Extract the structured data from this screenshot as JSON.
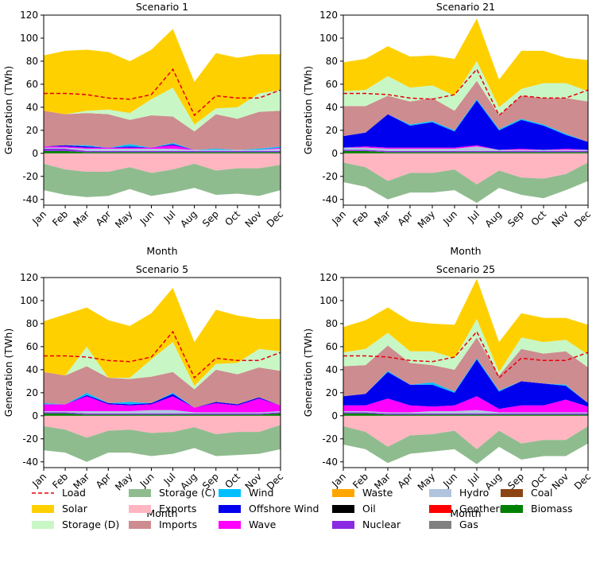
{
  "chart_data": [
    {
      "type": "area",
      "title": "Scenario 1",
      "xlabel": "Month",
      "ylabel": "Generation (TWh)",
      "ylim": [
        -45,
        120
      ],
      "yticks": [
        -40,
        -20,
        0,
        20,
        40,
        60,
        80,
        100,
        120
      ],
      "categories": [
        "Jan",
        "Feb",
        "Mar",
        "Apr",
        "May",
        "Jun",
        "Jul",
        "Aug",
        "Sep",
        "Oct",
        "Nov",
        "Dec"
      ],
      "series": [
        {
          "name": "Biomass",
          "values": [
            2,
            2,
            1,
            1,
            1,
            1,
            1,
            1,
            1,
            1,
            1,
            1
          ]
        },
        {
          "name": "Nuclear",
          "values": [
            2,
            2,
            1,
            1,
            1,
            1,
            1,
            1,
            1,
            1,
            1,
            1
          ]
        },
        {
          "name": "Hydro",
          "values": [
            1,
            1,
            2,
            2,
            2,
            2,
            2,
            1,
            1,
            1,
            1,
            2
          ]
        },
        {
          "name": "Wave",
          "values": [
            1,
            1,
            1,
            1,
            1,
            1,
            3,
            0,
            0,
            0,
            0,
            1
          ]
        },
        {
          "name": "Offshore Wind",
          "values": [
            0,
            1,
            1,
            0,
            1,
            0,
            1,
            0,
            0,
            0,
            0,
            0
          ]
        },
        {
          "name": "Wind",
          "values": [
            0,
            0,
            1,
            0,
            2,
            0,
            1,
            0,
            1,
            0,
            1,
            1
          ]
        },
        {
          "name": "Imports",
          "values": [
            31,
            27,
            28,
            29,
            21,
            28,
            23,
            16,
            30,
            27,
            32,
            31
          ]
        },
        {
          "name": "Storage (D)",
          "values": [
            0,
            0,
            2,
            4,
            6,
            14,
            25,
            6,
            5,
            10,
            16,
            18
          ]
        },
        {
          "name": "Solar",
          "values": [
            48,
            55,
            53,
            50,
            45,
            43,
            51,
            37,
            48,
            43,
            34,
            31
          ]
        },
        {
          "name": "Exports",
          "values": [
            -9,
            -14,
            -16,
            -16,
            -12,
            -17,
            -14,
            -9,
            -15,
            -13,
            -13,
            -10
          ]
        },
        {
          "name": "Storage (C)",
          "values": [
            -23,
            -22,
            -22,
            -21,
            -19,
            -20,
            -20,
            -21,
            -21,
            -22,
            -24,
            -22
          ]
        }
      ],
      "load": [
        52,
        52,
        51,
        48,
        47,
        51,
        73,
        33,
        50,
        48,
        48,
        55
      ]
    },
    {
      "type": "area",
      "title": "Scenario 21",
      "xlabel": "Month",
      "ylabel": "Generation (TWh)",
      "ylim": [
        -45,
        120
      ],
      "yticks": [
        -40,
        -20,
        0,
        20,
        40,
        60,
        80,
        100,
        120
      ],
      "categories": [
        "Jan",
        "Feb",
        "Mar",
        "Apr",
        "May",
        "Jun",
        "Jul",
        "Aug",
        "Sep",
        "Oct",
        "Nov",
        "Dec"
      ],
      "series": [
        {
          "name": "Biomass",
          "values": [
            2,
            2,
            1,
            1,
            1,
            1,
            1,
            1,
            1,
            1,
            1,
            1
          ]
        },
        {
          "name": "Nuclear",
          "values": [
            1,
            1,
            1,
            1,
            1,
            1,
            1,
            1,
            1,
            1,
            1,
            1
          ]
        },
        {
          "name": "Hydro",
          "values": [
            2,
            2,
            2,
            2,
            2,
            2,
            4,
            1,
            1,
            1,
            1,
            1
          ]
        },
        {
          "name": "Wave",
          "values": [
            0,
            1,
            1,
            1,
            1,
            1,
            1,
            0,
            1,
            0,
            1,
            0
          ]
        },
        {
          "name": "Offshore Wind",
          "values": [
            10,
            12,
            29,
            19,
            22,
            14,
            39,
            17,
            25,
            21,
            12,
            7
          ]
        },
        {
          "name": "Wind",
          "values": [
            0,
            0,
            0,
            1,
            1,
            1,
            1,
            1,
            1,
            1,
            1,
            0
          ]
        },
        {
          "name": "Imports",
          "values": [
            26,
            23,
            16,
            20,
            20,
            17,
            16,
            12,
            20,
            23,
            31,
            35
          ]
        },
        {
          "name": "Storage (D)",
          "values": [
            13,
            14,
            17,
            12,
            11,
            13,
            17,
            7,
            6,
            13,
            13,
            9
          ]
        },
        {
          "name": "Solar",
          "values": [
            25,
            27,
            26,
            27,
            26,
            32,
            37,
            24,
            33,
            28,
            22,
            27
          ]
        },
        {
          "name": "Exports",
          "values": [
            -8,
            -12,
            -24,
            -17,
            -17,
            -14,
            -27,
            -15,
            -21,
            -22,
            -18,
            -8
          ]
        },
        {
          "name": "Storage (C)",
          "values": [
            -17,
            -17,
            -16,
            -17,
            -17,
            -18,
            -16,
            -15,
            -15,
            -17,
            -14,
            -16
          ]
        }
      ],
      "load": [
        52,
        52,
        51,
        48,
        47,
        51,
        73,
        33,
        50,
        48,
        48,
        55
      ]
    },
    {
      "type": "area",
      "title": "Scenario 5",
      "xlabel": "Month",
      "ylabel": "Generation (TWh)",
      "ylim": [
        -45,
        120
      ],
      "yticks": [
        -40,
        -20,
        0,
        20,
        40,
        60,
        80,
        100,
        120
      ],
      "categories": [
        "Jan",
        "Feb",
        "Mar",
        "Apr",
        "May",
        "Jun",
        "Jul",
        "Aug",
        "Sep",
        "Oct",
        "Nov",
        "Dec"
      ],
      "series": [
        {
          "name": "Biomass",
          "values": [
            2,
            2,
            1,
            1,
            1,
            1,
            1,
            1,
            1,
            1,
            1,
            2
          ]
        },
        {
          "name": "Nuclear",
          "values": [
            1,
            1,
            1,
            1,
            1,
            1,
            1,
            1,
            1,
            1,
            1,
            1
          ]
        },
        {
          "name": "Hydro",
          "values": [
            1,
            1,
            2,
            2,
            2,
            3,
            3,
            1,
            1,
            1,
            1,
            1
          ]
        },
        {
          "name": "Wave",
          "values": [
            6,
            6,
            13,
            6,
            5,
            5,
            12,
            4,
            8,
            6,
            12,
            5
          ]
        },
        {
          "name": "Offshore Wind",
          "values": [
            0,
            0,
            1,
            1,
            1,
            1,
            2,
            0,
            1,
            1,
            1,
            0
          ]
        },
        {
          "name": "Wind",
          "values": [
            1,
            0,
            2,
            0,
            2,
            0,
            1,
            0,
            0,
            0,
            0,
            0
          ]
        },
        {
          "name": "Imports",
          "values": [
            27,
            25,
            23,
            22,
            20,
            23,
            18,
            16,
            28,
            26,
            26,
            30
          ]
        },
        {
          "name": "Storage (D)",
          "values": [
            0,
            0,
            17,
            0,
            1,
            15,
            26,
            3,
            5,
            10,
            16,
            17
          ]
        },
        {
          "name": "Solar",
          "values": [
            44,
            53,
            34,
            50,
            45,
            40,
            47,
            38,
            47,
            41,
            26,
            28
          ]
        },
        {
          "name": "Exports",
          "values": [
            -9,
            -12,
            -19,
            -13,
            -12,
            -15,
            -14,
            -10,
            -16,
            -14,
            -14,
            -8
          ]
        },
        {
          "name": "Storage (C)",
          "values": [
            -21,
            -20,
            -21,
            -19,
            -20,
            -20,
            -19,
            -18,
            -19,
            -20,
            -19,
            -21
          ]
        }
      ],
      "load": [
        52,
        52,
        51,
        48,
        47,
        51,
        73,
        33,
        50,
        48,
        48,
        55
      ]
    },
    {
      "type": "area",
      "title": "Scenario 25",
      "xlabel": "Month",
      "ylabel": "Generation (TWh)",
      "ylim": [
        -45,
        120
      ],
      "yticks": [
        -40,
        -20,
        0,
        20,
        40,
        60,
        80,
        100,
        120
      ],
      "categories": [
        "Jan",
        "Feb",
        "Mar",
        "Apr",
        "May",
        "Jun",
        "Jul",
        "Aug",
        "Sep",
        "Oct",
        "Nov",
        "Dec"
      ],
      "series": [
        {
          "name": "Biomass",
          "values": [
            2,
            2,
            1,
            1,
            1,
            1,
            1,
            1,
            1,
            1,
            1,
            1
          ]
        },
        {
          "name": "Nuclear",
          "values": [
            1,
            1,
            1,
            1,
            1,
            1,
            1,
            1,
            1,
            1,
            1,
            1
          ]
        },
        {
          "name": "Hydro",
          "values": [
            1,
            1,
            1,
            1,
            2,
            2,
            3,
            1,
            1,
            1,
            1,
            1
          ]
        },
        {
          "name": "Wave",
          "values": [
            5,
            5,
            12,
            6,
            4,
            5,
            12,
            3,
            6,
            6,
            11,
            5
          ]
        },
        {
          "name": "Offshore Wind",
          "values": [
            8,
            10,
            23,
            18,
            19,
            11,
            32,
            15,
            21,
            19,
            12,
            3
          ]
        },
        {
          "name": "Wind",
          "values": [
            0,
            0,
            1,
            0,
            2,
            1,
            1,
            1,
            0,
            0,
            1,
            0
          ]
        },
        {
          "name": "Imports",
          "values": [
            26,
            25,
            22,
            19,
            15,
            19,
            18,
            13,
            28,
            26,
            29,
            31
          ]
        },
        {
          "name": "Storage (D)",
          "values": [
            12,
            14,
            11,
            10,
            12,
            10,
            16,
            3,
            10,
            10,
            10,
            11
          ]
        },
        {
          "name": "Solar",
          "values": [
            22,
            25,
            22,
            26,
            24,
            29,
            35,
            26,
            21,
            21,
            19,
            26
          ]
        },
        {
          "name": "Exports",
          "values": [
            -9,
            -14,
            -27,
            -17,
            -16,
            -13,
            -29,
            -13,
            -24,
            -21,
            -21,
            -9
          ]
        },
        {
          "name": "Storage (C)",
          "values": [
            -16,
            -15,
            -14,
            -16,
            -15,
            -16,
            -13,
            -14,
            -14,
            -14,
            -14,
            -15
          ]
        }
      ],
      "load": [
        52,
        52,
        51,
        48,
        47,
        51,
        73,
        33,
        50,
        48,
        48,
        55
      ]
    }
  ],
  "legend": {
    "placement": "bottom",
    "items": [
      {
        "label": "Load",
        "color": "#e8000b",
        "kind": "line"
      },
      {
        "label": "Solar",
        "color": "#ffd000",
        "kind": "patch"
      },
      {
        "label": "Storage (D)",
        "color": "#c8f7c5",
        "kind": "patch"
      },
      {
        "label": "Storage (C)",
        "color": "#8fbc8f",
        "kind": "patch"
      },
      {
        "label": "Exports",
        "color": "#ffb6c1",
        "kind": "patch"
      },
      {
        "label": "Imports",
        "color": "#cd8c8f",
        "kind": "patch"
      },
      {
        "label": "Wind",
        "color": "#00bfff",
        "kind": "patch"
      },
      {
        "label": "Offshore Wind",
        "color": "#0000ee",
        "kind": "patch"
      },
      {
        "label": "Wave",
        "color": "#ff00ff",
        "kind": "patch"
      },
      {
        "label": "Waste",
        "color": "#ffa500",
        "kind": "patch"
      },
      {
        "label": "Oil",
        "color": "#000000",
        "kind": "patch"
      },
      {
        "label": "Nuclear",
        "color": "#8a2be2",
        "kind": "patch"
      },
      {
        "label": "Hydro",
        "color": "#b0c4de",
        "kind": "patch"
      },
      {
        "label": "Geothermal",
        "color": "#ff0000",
        "kind": "patch"
      },
      {
        "label": "Gas",
        "color": "#808080",
        "kind": "patch"
      },
      {
        "label": "Coal",
        "color": "#8b4513",
        "kind": "patch"
      },
      {
        "label": "Biomass",
        "color": "#008000",
        "kind": "patch"
      }
    ]
  },
  "colors": {
    "Solar": "#ffd000",
    "Storage (D)": "#c8f7c5",
    "Storage (C)": "#8fbc8f",
    "Exports": "#ffb6c1",
    "Imports": "#cd8c8f",
    "Wind": "#00bfff",
    "Offshore Wind": "#0000ee",
    "Wave": "#ff00ff",
    "Hydro": "#b0c4de",
    "Nuclear": "#8a2be2",
    "Biomass": "#008000",
    "Load": "#e8000b"
  }
}
